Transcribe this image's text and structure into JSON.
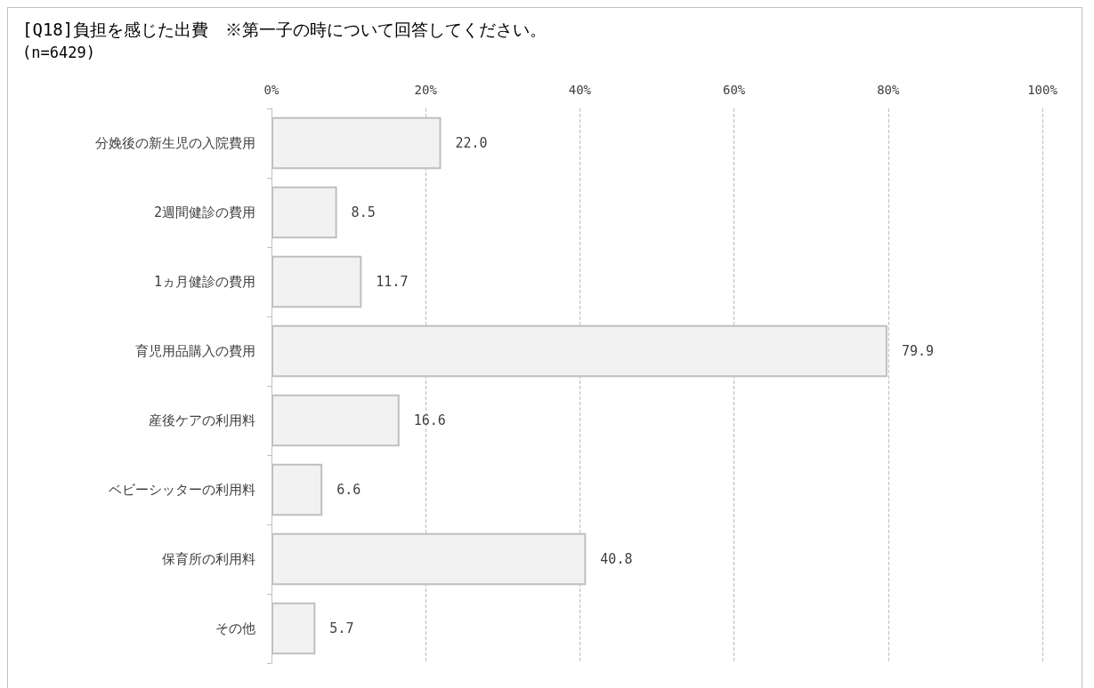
{
  "chart_data": {
    "type": "bar",
    "orientation": "horizontal",
    "title": "[Q18]負担を感じた出費　※第一子の時について回答してください。",
    "subtitle": "(n=6429)",
    "categories": [
      "分娩後の新生児の入院費用",
      "2週間健診の費用",
      "1ヵ月健診の費用",
      "育児用品購入の費用",
      "産後ケアの利用料",
      "ベビーシッターの利用料",
      "保育所の利用料",
      "その他"
    ],
    "values": [
      22.0,
      8.5,
      11.7,
      79.9,
      16.6,
      6.6,
      40.8,
      5.7
    ],
    "value_labels": [
      "22.0",
      "8.5",
      "11.7",
      "79.9",
      "16.6",
      "6.6",
      "40.8",
      "5.7"
    ],
    "color": "#f2f2f2",
    "xlim": [
      0,
      100
    ],
    "xticks": [
      {
        "value": 0,
        "label": "0%"
      },
      {
        "value": 20,
        "label": "20%"
      },
      {
        "value": 40,
        "label": "40%"
      },
      {
        "value": 60,
        "label": "60%"
      },
      {
        "value": 80,
        "label": "80%"
      },
      {
        "value": 100,
        "label": "100%"
      }
    ],
    "grid": "x"
  }
}
